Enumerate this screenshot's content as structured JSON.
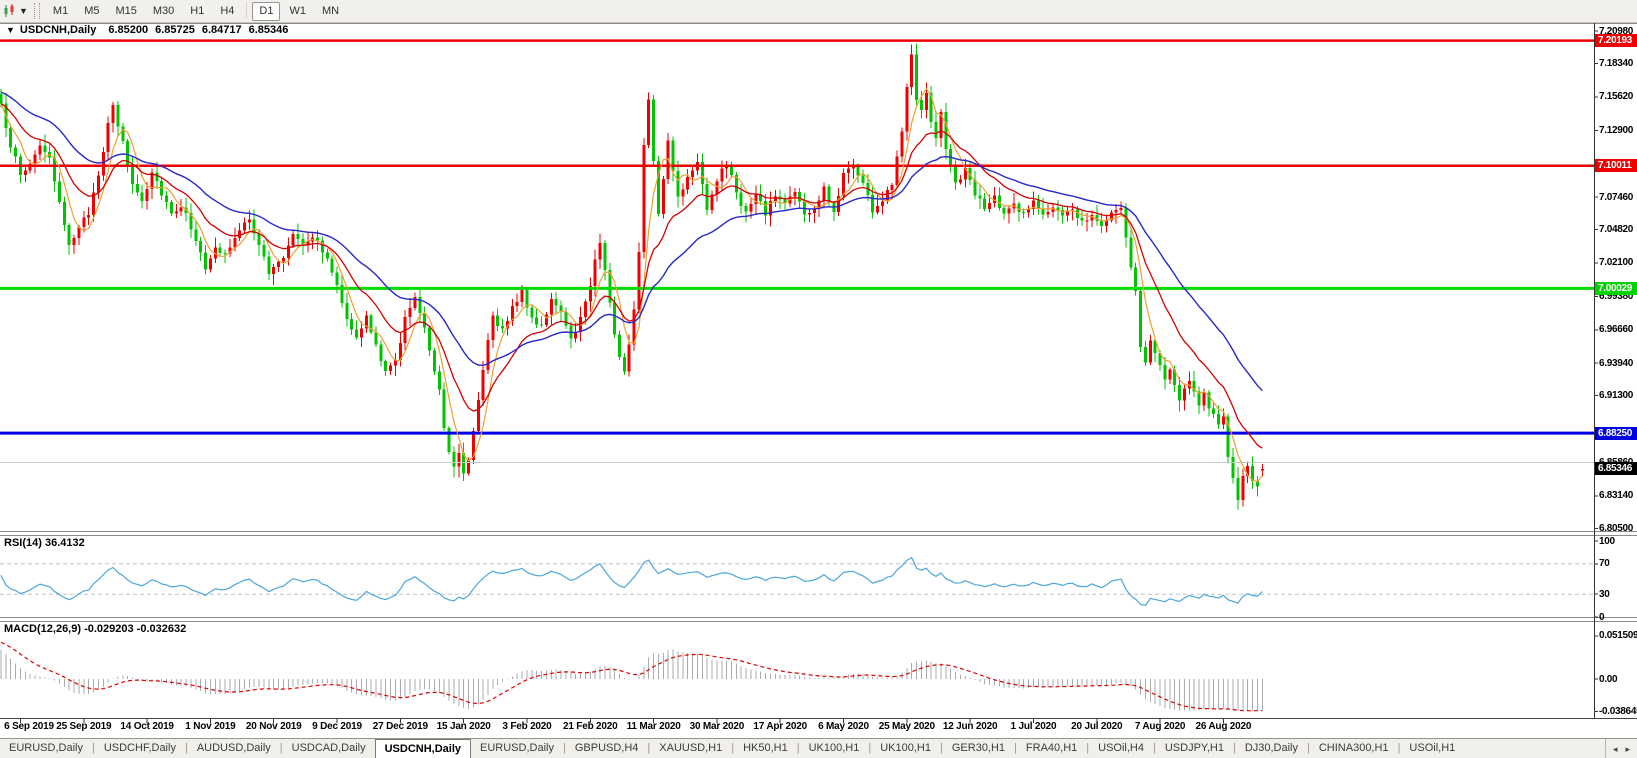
{
  "toolbar": {
    "timeframes": [
      "M1",
      "M5",
      "M15",
      "M30",
      "H1",
      "H4",
      "D1",
      "W1",
      "MN"
    ],
    "active_timeframe": "D1"
  },
  "chart": {
    "title_symbol": "USDCNH,Daily",
    "open": "6.85200",
    "high": "6.85725",
    "low": "6.84717",
    "close": "6.85346"
  },
  "panes": {
    "rsi_label": "RSI(14) 36.4132",
    "macd_label": "MACD(12,26,9) -0.029203 -0.032632"
  },
  "price_axis": {
    "ticks": [
      "7.20980",
      "7.18340",
      "7.15620",
      "7.12900",
      "7.07460",
      "7.04820",
      "7.02100",
      "6.99380",
      "6.96660",
      "6.93940",
      "6.91300",
      "6.85860",
      "6.83140",
      "6.80500"
    ],
    "line_labels": [
      {
        "text": "7.20193",
        "value": 7.20193,
        "bg": "#ee0000"
      },
      {
        "text": "7.10011",
        "value": 7.10011,
        "bg": "#ee0000"
      },
      {
        "text": "7.00029",
        "value": 7.00029,
        "bg": "#00d400"
      },
      {
        "text": "6.88250",
        "value": 6.8825,
        "bg": "#0000e0"
      }
    ],
    "current_price_label": {
      "text": "6.85346",
      "value": 6.85346,
      "bg": "#000000"
    }
  },
  "rsi_axis": {
    "ticks": [
      "100",
      "70",
      "30",
      "0"
    ]
  },
  "macd_axis": {
    "ticks": [
      "0.051509",
      "0.00",
      "-0.038645"
    ]
  },
  "date_axis": {
    "labels": [
      "6 Sep 2019",
      "25 Sep 2019",
      "14 Oct 2019",
      "1 Nov 2019",
      "20 Nov 2019",
      "9 Dec 2019",
      "27 Dec 2019",
      "15 Jan 2020",
      "3 Feb 2020",
      "21 Feb 2020",
      "11 Mar 2020",
      "30 Mar 2020",
      "17 Apr 2020",
      "6 May 2020",
      "25 May 2020",
      "12 Jun 2020",
      "1 Jul 2020",
      "20 Jul 2020",
      "7 Aug 2020",
      "26 Aug 2020"
    ]
  },
  "tabs": {
    "items": [
      "EURUSD,Daily",
      "USDCHF,Daily",
      "AUDUSD,Daily",
      "USDCAD,Daily",
      "USDCNH,Daily",
      "EURUSD,Daily",
      "GBPUSD,H4",
      "XAUUSD,H1",
      "HK50,H1",
      "UK100,H1",
      "UK100,H1",
      "GER30,H1",
      "FRA40,H1",
      "USOil,H4",
      "USDJPY,H1",
      "DJ30,Daily",
      "CHINA300,H1",
      "USOil,H1"
    ],
    "active_index": 4,
    "scroll_left": "◂",
    "scroll_right": "▸"
  },
  "chart_data": {
    "type": "candlestick",
    "symbol": "USDCNH",
    "timeframe": "Daily",
    "title": "USDCNH,Daily 6.85200 6.85725 6.84717 6.85346",
    "current_bar": {
      "open": 6.852,
      "high": 6.85725,
      "low": 6.84717,
      "close": 6.85346
    },
    "ylim": [
      6.805,
      7.2098
    ],
    "num_candles": 260,
    "bars_per_x_label": 13,
    "first_label_index": 4,
    "up_color": "#f00000",
    "down_color": "#00c400",
    "horizontal_lines": [
      {
        "value": 7.20193,
        "color": "#ee0000",
        "width": 2.5
      },
      {
        "value": 7.10011,
        "color": "#ee0000",
        "width": 2.5
      },
      {
        "value": 7.00029,
        "color": "#00dc00",
        "width": 3
      },
      {
        "value": 6.8825,
        "color": "#0000e8",
        "width": 3
      },
      {
        "value": 6.8586,
        "color": "#c8c8c8",
        "width": 1
      }
    ],
    "moving_averages": [
      {
        "name": "fast",
        "type": "sma",
        "period": 5,
        "color": "#f0a030"
      },
      {
        "name": "mid",
        "type": "ema",
        "period": 14,
        "color": "#d40000"
      },
      {
        "name": "slow",
        "type": "ema",
        "period": 32,
        "color": "#2828c8"
      }
    ],
    "indicators": [
      {
        "name": "RSI",
        "params": "14",
        "last_value": 36.4132,
        "range": [
          0,
          100
        ],
        "levels": [
          70,
          30
        ],
        "color": "#4da6dd"
      },
      {
        "name": "MACD",
        "params": "12,26,9",
        "last_values": [
          -0.029203,
          -0.032632
        ],
        "axis_max": 0.051509,
        "axis_min": -0.038645,
        "histogram_color": "#ababab",
        "signal_color": "#e00000"
      }
    ],
    "price_keypoints": [
      [
        0,
        7.148
      ],
      [
        2,
        7.118
      ],
      [
        4,
        7.092
      ],
      [
        6,
        7.102
      ],
      [
        8,
        7.118
      ],
      [
        10,
        7.104
      ],
      [
        12,
        7.068
      ],
      [
        14,
        7.038
      ],
      [
        16,
        7.048
      ],
      [
        18,
        7.062
      ],
      [
        20,
        7.095
      ],
      [
        22,
        7.132
      ],
      [
        23,
        7.148
      ],
      [
        25,
        7.118
      ],
      [
        27,
        7.086
      ],
      [
        29,
        7.072
      ],
      [
        31,
        7.096
      ],
      [
        33,
        7.079
      ],
      [
        35,
        7.062
      ],
      [
        37,
        7.068
      ],
      [
        39,
        7.051
      ],
      [
        41,
        7.031
      ],
      [
        42,
        7.014
      ],
      [
        44,
        7.032
      ],
      [
        46,
        7.028
      ],
      [
        49,
        7.046
      ],
      [
        51,
        7.058
      ],
      [
        53,
        7.037
      ],
      [
        55,
        7.012
      ],
      [
        58,
        7.026
      ],
      [
        60,
        7.046
      ],
      [
        62,
        7.038
      ],
      [
        64,
        7.043
      ],
      [
        66,
        7.032
      ],
      [
        69,
        7.004
      ],
      [
        71,
        6.978
      ],
      [
        73,
        6.959
      ],
      [
        75,
        6.976
      ],
      [
        77,
        6.954
      ],
      [
        79,
        6.931
      ],
      [
        81,
        6.941
      ],
      [
        83,
        6.976
      ],
      [
        85,
        6.991
      ],
      [
        87,
        6.971
      ],
      [
        88,
        6.951
      ],
      [
        90,
        6.918
      ],
      [
        91,
        6.888
      ],
      [
        92,
        6.868
      ],
      [
        93,
        6.857
      ],
      [
        94,
        6.869
      ],
      [
        95,
        6.851
      ],
      [
        96,
        6.861
      ],
      [
        97,
        6.886
      ],
      [
        98,
        6.912
      ],
      [
        99,
        6.932
      ],
      [
        100,
        6.956
      ],
      [
        101,
        6.976
      ],
      [
        103,
        6.967
      ],
      [
        105,
        6.986
      ],
      [
        107,
        6.996
      ],
      [
        109,
        6.976
      ],
      [
        111,
        6.971
      ],
      [
        113,
        6.991
      ],
      [
        115,
        6.978
      ],
      [
        117,
        6.959
      ],
      [
        119,
        6.976
      ],
      [
        121,
        7.003
      ],
      [
        122,
        7.026
      ],
      [
        123,
        7.039
      ],
      [
        124,
        7.014
      ],
      [
        125,
        6.989
      ],
      [
        126,
        6.964
      ],
      [
        127,
        6.943
      ],
      [
        128,
        6.934
      ],
      [
        129,
        6.956
      ],
      [
        130,
        6.986
      ],
      [
        131,
        7.03
      ],
      [
        132,
        7.12
      ],
      [
        133,
        7.152
      ],
      [
        134,
        7.102
      ],
      [
        135,
        7.062
      ],
      [
        136,
        7.09
      ],
      [
        137,
        7.121
      ],
      [
        138,
        7.096
      ],
      [
        139,
        7.076
      ],
      [
        141,
        7.091
      ],
      [
        143,
        7.106
      ],
      [
        145,
        7.066
      ],
      [
        147,
        7.089
      ],
      [
        149,
        7.101
      ],
      [
        151,
        7.079
      ],
      [
        153,
        7.061
      ],
      [
        155,
        7.076
      ],
      [
        157,
        7.062
      ],
      [
        159,
        7.076
      ],
      [
        161,
        7.069
      ],
      [
        163,
        7.081
      ],
      [
        165,
        7.059
      ],
      [
        167,
        7.064
      ],
      [
        169,
        7.081
      ],
      [
        171,
        7.061
      ],
      [
        173,
        7.094
      ],
      [
        175,
        7.101
      ],
      [
        177,
        7.086
      ],
      [
        179,
        7.064
      ],
      [
        181,
        7.071
      ],
      [
        183,
        7.086
      ],
      [
        185,
        7.131
      ],
      [
        186,
        7.166
      ],
      [
        187,
        7.191
      ],
      [
        188,
        7.156
      ],
      [
        189,
        7.148
      ],
      [
        190,
        7.161
      ],
      [
        191,
        7.134
      ],
      [
        192,
        7.124
      ],
      [
        193,
        7.146
      ],
      [
        194,
        7.114
      ],
      [
        196,
        7.086
      ],
      [
        198,
        7.096
      ],
      [
        200,
        7.079
      ],
      [
        202,
        7.064
      ],
      [
        204,
        7.074
      ],
      [
        206,
        7.059
      ],
      [
        208,
        7.069
      ],
      [
        210,
        7.061
      ],
      [
        212,
        7.071
      ],
      [
        214,
        7.059
      ],
      [
        216,
        7.067
      ],
      [
        218,
        7.057
      ],
      [
        220,
        7.065
      ],
      [
        222,
        7.055
      ],
      [
        224,
        7.062
      ],
      [
        226,
        7.049
      ],
      [
        228,
        7.059
      ],
      [
        230,
        7.067
      ],
      [
        231,
        7.039
      ],
      [
        232,
        7.019
      ],
      [
        233,
        6.997
      ],
      [
        234,
        6.951
      ],
      [
        235,
        6.941
      ],
      [
        236,
        6.957
      ],
      [
        237,
        6.947
      ],
      [
        238,
        6.937
      ],
      [
        239,
        6.926
      ],
      [
        240,
        6.933
      ],
      [
        241,
        6.919
      ],
      [
        242,
        6.911
      ],
      [
        243,
        6.92
      ],
      [
        244,
        6.927
      ],
      [
        245,
        6.915
      ],
      [
        246,
        6.907
      ],
      [
        247,
        6.915
      ],
      [
        248,
        6.905
      ],
      [
        249,
        6.895
      ],
      [
        250,
        6.888
      ],
      [
        251,
        6.893
      ],
      [
        252,
        6.865
      ],
      [
        253,
        6.844
      ],
      [
        254,
        6.831
      ],
      [
        255,
        6.845
      ],
      [
        256,
        6.855
      ],
      [
        257,
        6.842
      ],
      [
        258,
        6.837
      ],
      [
        259,
        6.8535
      ]
    ]
  }
}
